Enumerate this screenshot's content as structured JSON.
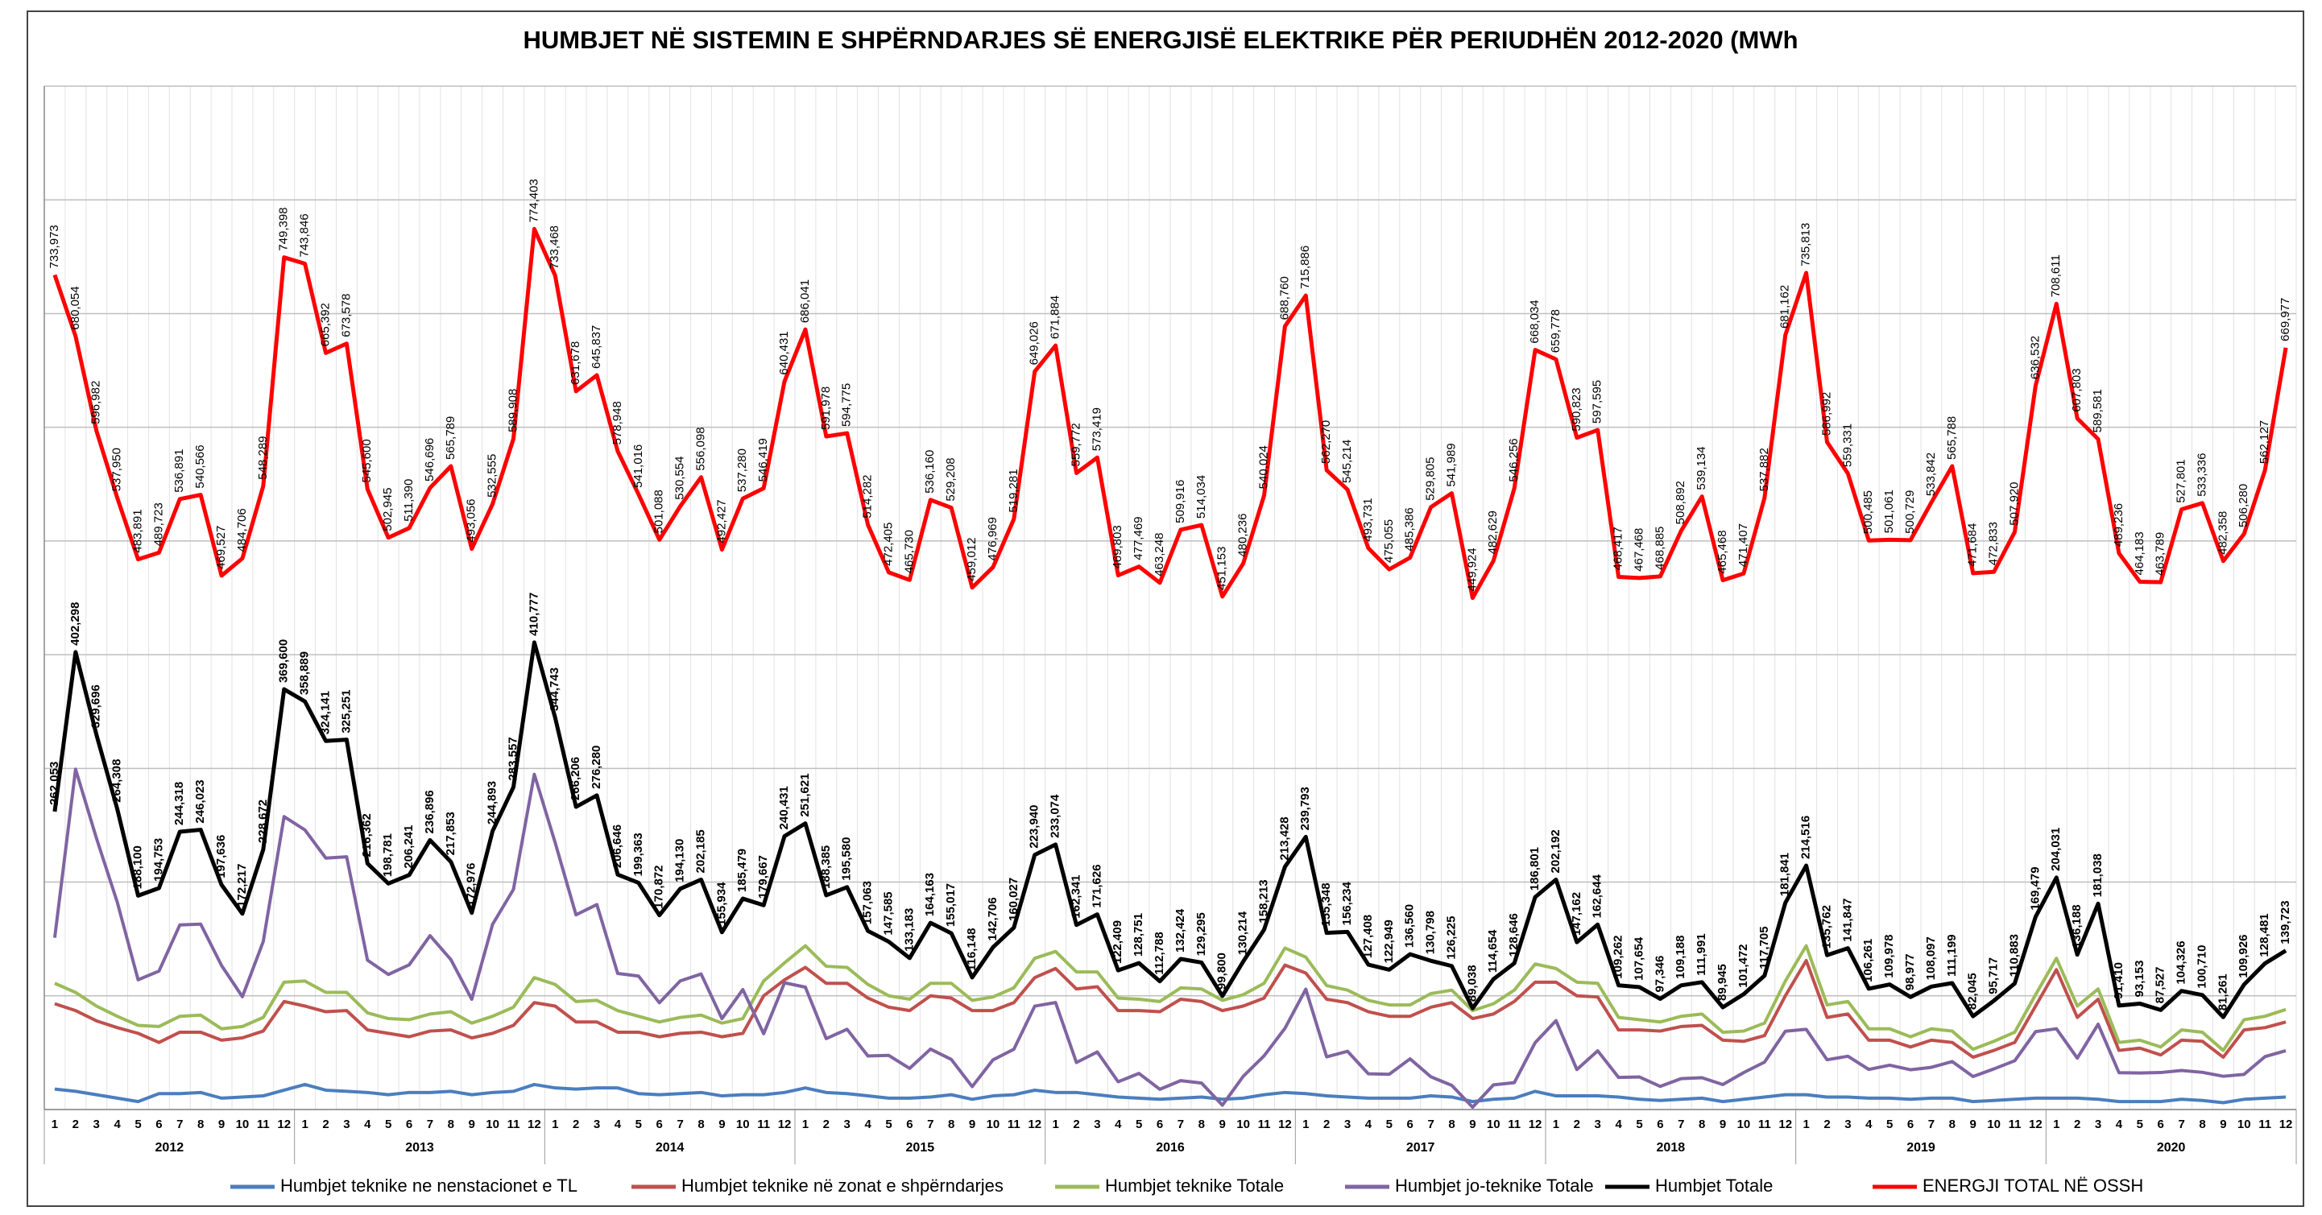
{
  "chart_data": {
    "type": "line",
    "title": "HUMBJET  NË SISTEMIN E SHPËRNDARJES SË ENERGJISË ELEKTRIKE PËR PERIUDHËN 2012-2020 (MWh",
    "years": [
      "2012",
      "2013",
      "2014",
      "2015",
      "2016",
      "2017",
      "2018",
      "2019",
      "2020"
    ],
    "months": [
      "1",
      "2",
      "3",
      "4",
      "5",
      "6",
      "7",
      "8",
      "9",
      "10",
      "11",
      "12"
    ],
    "ylim": [
      0,
      900000
    ],
    "yticks": [
      0,
      100000,
      200000,
      300000,
      400000,
      500000,
      600000,
      700000,
      800000,
      900000
    ],
    "grid": true,
    "legend": "bottom",
    "series": [
      {
        "name": "Humbjet teknike ne nenstacionet e TL",
        "color": "#4a7ebf",
        "values": [
          18000,
          16000,
          13000,
          10000,
          7000,
          14000,
          14000,
          15000,
          10000,
          11000,
          12000,
          17000,
          22000,
          17000,
          16000,
          15000,
          13000,
          15000,
          15000,
          16000,
          13000,
          15000,
          16000,
          22000,
          19000,
          18000,
          19000,
          19000,
          14000,
          13000,
          14000,
          15000,
          12000,
          13000,
          13000,
          15000,
          19000,
          15000,
          14000,
          12000,
          10000,
          10000,
          11000,
          13000,
          9000,
          12000,
          13000,
          17000,
          15000,
          15000,
          13000,
          11000,
          10000,
          9000,
          10000,
          11000,
          9000,
          10000,
          13000,
          15000,
          14000,
          12000,
          11000,
          10000,
          10000,
          10000,
          12000,
          11000,
          7000,
          9000,
          10000,
          16000,
          12000,
          12000,
          12000,
          11000,
          9000,
          8000,
          9000,
          10000,
          7000,
          9000,
          11000,
          13000,
          13000,
          11000,
          11000,
          10000,
          10000,
          9000,
          10000,
          10000,
          7000,
          8000,
          9000,
          10000,
          10000,
          10000,
          9000,
          7000,
          7000,
          7000,
          9000,
          8000,
          6000,
          9000,
          10000,
          11000
        ]
      },
      {
        "name": "Humbjet teknike në zonat e shpërndarjes",
        "color": "#c0504d",
        "values": [
          93000,
          87000,
          78000,
          72000,
          67000,
          59000,
          68000,
          68000,
          61000,
          63000,
          69000,
          95000,
          91000,
          86000,
          87000,
          70000,
          67000,
          64000,
          69000,
          70000,
          63000,
          67000,
          74000,
          94000,
          91000,
          77000,
          77000,
          68000,
          68000,
          64000,
          67000,
          68000,
          64000,
          67000,
          100000,
          114000,
          125000,
          111000,
          111000,
          98000,
          90000,
          87000,
          100000,
          98000,
          87000,
          87000,
          94000,
          116000,
          124000,
          106000,
          108000,
          87000,
          87000,
          86000,
          97000,
          95000,
          87000,
          91000,
          98000,
          127000,
          120000,
          97000,
          94000,
          86000,
          82000,
          82000,
          90000,
          94000,
          80000,
          84000,
          95000,
          112000,
          112000,
          100000,
          99000,
          70000,
          70000,
          69000,
          73000,
          74000,
          61000,
          60000,
          65000,
          100000,
          131000,
          81000,
          84000,
          61000,
          61000,
          55000,
          61000,
          59000,
          46000,
          52000,
          59000,
          91000,
          123000,
          81000,
          97000,
          52000,
          54000,
          48000,
          61000,
          60000,
          46000,
          70000,
          72000,
          77000
        ]
      },
      {
        "name": "Humbjet teknike Totale",
        "color": "#9bbb59",
        "values": [
          111000,
          103000,
          91000,
          82000,
          74000,
          73000,
          82000,
          83000,
          71000,
          73000,
          81000,
          112000,
          113000,
          103000,
          103000,
          85000,
          80000,
          79000,
          84000,
          86000,
          76000,
          82000,
          90000,
          116000,
          110000,
          95000,
          96000,
          87000,
          82000,
          77000,
          81000,
          83000,
          76000,
          80000,
          113000,
          129000,
          144000,
          126000,
          125000,
          110000,
          100000,
          97000,
          111000,
          111000,
          96000,
          99000,
          107000,
          133000,
          139000,
          121000,
          121000,
          98000,
          97000,
          95000,
          107000,
          106000,
          96000,
          101000,
          111000,
          142000,
          134000,
          109000,
          105000,
          96000,
          92000,
          92000,
          102000,
          105000,
          87000,
          93000,
          105000,
          128000,
          124000,
          112000,
          111000,
          81000,
          79000,
          77000,
          82000,
          84000,
          68000,
          69000,
          76000,
          113000,
          144000,
          92000,
          95000,
          71000,
          71000,
          64000,
          71000,
          69000,
          53000,
          60000,
          68000,
          101000,
          133000,
          91000,
          106000,
          59000,
          61000,
          55000,
          70000,
          68000,
          52000,
          79000,
          82000,
          88000
        ]
      },
      {
        "name": "Humbjet jo-teknike Totale",
        "color": "#8064a2",
        "values": [
          151053,
          299298,
          238696,
          182308,
          114100,
          121753,
          162318,
          163023,
          126636,
          99217,
          147672,
          257600,
          245889,
          221141,
          222251,
          131362,
          118781,
          127241,
          152896,
          131853,
          96976,
          162893,
          193557,
          294777,
          234743,
          171206,
          180280,
          119646,
          117363,
          93872,
          113130,
          119185,
          79934,
          105479,
          66667,
          111431,
          107621,
          62385,
          70580,
          47063,
          47585,
          36183,
          53163,
          44017,
          20148,
          43706,
          53027,
          90940,
          94074,
          41341,
          50626,
          24409,
          31751,
          17788,
          25424,
          23295,
          3800,
          29214,
          47213,
          71428,
          105793,
          46348,
          51234,
          31408,
          30949,
          44560,
          28798,
          21225,
          2038,
          21654,
          23646,
          58801,
          78192,
          35162,
          51644,
          28262,
          28654,
          20346,
          27188,
          27991,
          21945,
          32472,
          41705,
          68841,
          70516,
          43762,
          46847,
          35261,
          38978,
          34977,
          37097,
          42199,
          29045,
          35717,
          42883,
          68479,
          71031,
          45188,
          75038,
          32410,
          32153,
          32527,
          34326,
          32710,
          29261,
          30926,
          46481,
          51723
        ]
      },
      {
        "name": "Humbjet  Totale",
        "color": "#000000",
        "values": [
          262053,
          402298,
          329696,
          264308,
          188100,
          194753,
          244318,
          246023,
          197636,
          172217,
          228672,
          369600,
          358889,
          324141,
          325251,
          216362,
          198781,
          206241,
          236896,
          217853,
          172976,
          244893,
          283557,
          410777,
          344743,
          266206,
          276280,
          206646,
          199363,
          170872,
          194130,
          202185,
          155934,
          185479,
          179667,
          240431,
          251621,
          188385,
          195580,
          157063,
          147585,
          133183,
          164163,
          155017,
          116148,
          142706,
          160027,
          223940,
          233074,
          162341,
          171626,
          122409,
          128751,
          112788,
          132424,
          129295,
          99800,
          130214,
          158213,
          213428,
          239793,
          155348,
          156234,
          127408,
          122949,
          136560,
          130798,
          126225,
          89038,
          114654,
          128646,
          186801,
          202192,
          147162,
          162644,
          109262,
          107654,
          97346,
          109188,
          111991,
          89945,
          101472,
          117705,
          181841,
          214516,
          135762,
          141847,
          106261,
          109978,
          98977,
          108097,
          111199,
          82045,
          95717,
          110883,
          169479,
          204031,
          136188,
          181038,
          91410,
          93153,
          87527,
          104326,
          100710,
          81261,
          109926,
          128481,
          139723
        ],
        "value_labels": [
          "262,053",
          "402,298",
          "329,696",
          "264,308",
          "188,100",
          "194,753",
          "244,318",
          "246,023",
          "197,636",
          "172,217",
          "228,672",
          "369,600",
          "358,889",
          "324,141",
          "325,251",
          "216,362",
          "198,781",
          "206,241",
          "236,896",
          "217,853",
          "172,976",
          "244,893",
          "283,557",
          "410,777",
          "344,743",
          "266,206",
          "276,280",
          "206,646",
          "199,363",
          "170,872",
          "194,130",
          "202,185",
          "155,934",
          "185,479",
          "179,667",
          "240,431",
          "251,621",
          "188,385",
          "195,580",
          "157,063",
          "147,585",
          "133,183",
          "164,163",
          "155,017",
          "116,148",
          "142,706",
          "160,027",
          "223,940",
          "233,074",
          "162,341",
          "171,626",
          "122,409",
          "128,751",
          "112,788",
          "132,424",
          "129,295",
          "99,800",
          "130,214",
          "158,213",
          "213,428",
          "239,793",
          "155,348",
          "156,234",
          "127,408",
          "122,949",
          "136,560",
          "130,798",
          "126,225",
          "89,038",
          "114,654",
          "128,646",
          "186,801",
          "202,192",
          "147,162",
          "162,644",
          "109,262",
          "107,654",
          "97,346",
          "109,188",
          "111,991",
          "89,945",
          "101,472",
          "117,705",
          "181,841",
          "214,516",
          "135,762",
          "141,847",
          "106,261",
          "109,978",
          "98,977",
          "108,097",
          "111,199",
          "82,045",
          "95,717",
          "110,883",
          "169,479",
          "204,031",
          "136,188",
          "181,038",
          "91,410",
          "93,153",
          "87,527",
          "104,326",
          "100,710",
          "81,261",
          "109,926",
          "128,481",
          "139,723"
        ]
      },
      {
        "name": "ENERGJI TOTAL NË OSSH",
        "color": "#ff0000",
        "values": [
          733973,
          680054,
          596982,
          537950,
          483891,
          489723,
          536891,
          540566,
          469527,
          484706,
          548289,
          749398,
          743846,
          665392,
          673578,
          545600,
          502945,
          511390,
          546696,
          565789,
          493056,
          532555,
          589908,
          774403,
          733468,
          631678,
          645837,
          578948,
          541016,
          501088,
          530554,
          556098,
          492427,
          537280,
          546419,
          640431,
          686041,
          591978,
          594775,
          514282,
          472405,
          465730,
          536160,
          529208,
          459012,
          476969,
          519281,
          649026,
          671884,
          559772,
          573419,
          469803,
          477469,
          463248,
          509916,
          514034,
          451153,
          480236,
          540024,
          688760,
          715886,
          562270,
          545214,
          493731,
          475055,
          485386,
          529805,
          541989,
          449924,
          482629,
          546256,
          668034,
          659778,
          590823,
          597595,
          468417,
          467468,
          468885,
          508892,
          539134,
          465468,
          471407,
          537882,
          681162,
          735813,
          586992,
          559331,
          500485,
          501061,
          500729,
          533842,
          565788,
          471684,
          472833,
          507920,
          636532,
          708611,
          607803,
          589581,
          489236,
          464183,
          463789,
          527801,
          533336,
          482358,
          506280,
          562127,
          669977
        ],
        "value_labels": [
          "733,973",
          "680,054",
          "596,982",
          "537,950",
          "483,891",
          "489,723",
          "536,891",
          "540,566",
          "469,527",
          "484,706",
          "548,289",
          "749,398",
          "743,846",
          "665,392",
          "673,578",
          "545,600",
          "502,945",
          "511,390",
          "546,696",
          "565,789",
          "493,056",
          "532,555",
          "589,908",
          "774,403",
          "733,468",
          "631,678",
          "645,837",
          "578,948",
          "541,016",
          "501,088",
          "530,554",
          "556,098",
          "492,427",
          "537,280",
          "546,419",
          "640,431",
          "686,041",
          "591,978",
          "594,775",
          "514,282",
          "472,405",
          "465,730",
          "536,160",
          "529,208",
          "459,012",
          "476,969",
          "519,281",
          "649,026",
          "671,884",
          "559,772",
          "573,419",
          "469,803",
          "477,469",
          "463,248",
          "509,916",
          "514,034",
          "451,153",
          "480,236",
          "540,024",
          "688,760",
          "715,886",
          "562,270",
          "545,214",
          "493,731",
          "475,055",
          "485,386",
          "529,805",
          "541,989",
          "449,924",
          "482,629",
          "546,256",
          "668,034",
          "659,778",
          "590,823",
          "597,595",
          "468,417",
          "467,468",
          "468,885",
          "508,892",
          "539,134",
          "465,468",
          "471,407",
          "537,882",
          "681,162",
          "735,813",
          "586,992",
          "559,331",
          "500,485",
          "501,061",
          "500,729",
          "533,842",
          "565,788",
          "471,684",
          "472,833",
          "507,920",
          "636,532",
          "708,611",
          "607,803",
          "589,581",
          "489,236",
          "464,183",
          "463,789",
          "527,801",
          "533,336",
          "482,358",
          "506,280",
          "562,127",
          "669,977"
        ]
      }
    ]
  }
}
